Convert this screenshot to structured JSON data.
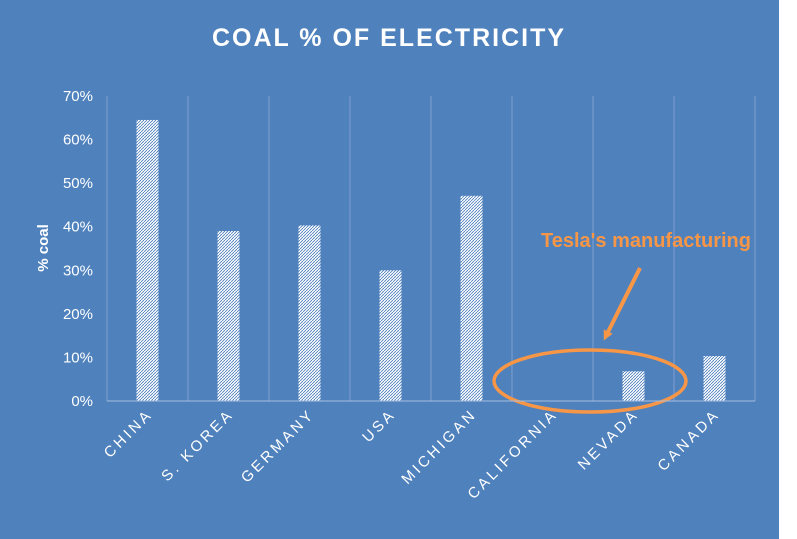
{
  "chart_data": {
    "type": "bar",
    "title": "COAL % OF ELECTRICITY",
    "ylabel": "% coal",
    "xlabel": "",
    "categories": [
      "CHINA",
      "S. KOREA",
      "GERMANY",
      "USA",
      "MICHIGAN",
      "CALIFORNIA",
      "NEVADA",
      "CANADA"
    ],
    "values": [
      0.645,
      0.39,
      0.403,
      0.3,
      0.471,
      0.0,
      0.068,
      0.103
    ],
    "ylim": [
      0,
      0.7
    ],
    "yticks": [
      "0%",
      "10%",
      "20%",
      "30%",
      "40%",
      "50%",
      "60%",
      "70%"
    ],
    "grid": "vertical",
    "legend": "none",
    "annotation": {
      "text": "Tesla's manufacturing",
      "highlight": [
        "CALIFORNIA",
        "NEVADA"
      ]
    },
    "colors": {
      "background": "#4f81bd",
      "bar_fill": "#ffffff",
      "bar_hatch": "#4f81bd",
      "gridline": "#7ea0d0",
      "annotation": "#f79646",
      "text": "#ffffff"
    }
  }
}
